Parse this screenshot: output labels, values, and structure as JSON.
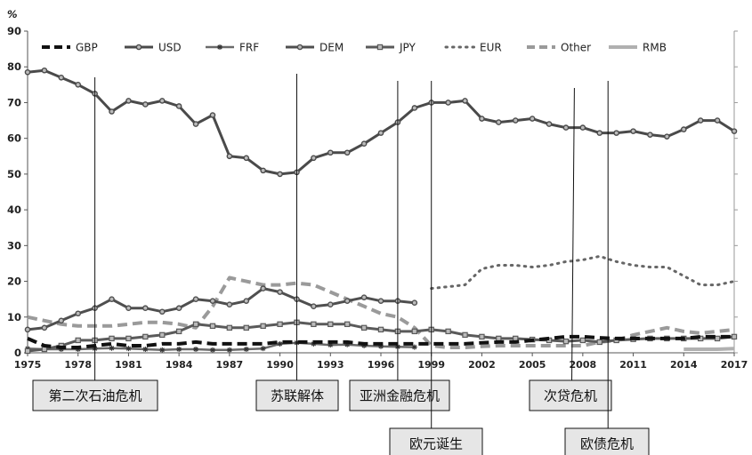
{
  "chart_data": {
    "type": "line",
    "ylabel": "%",
    "ylim": [
      0,
      90
    ],
    "xlim": [
      1975,
      2017
    ],
    "grid": false,
    "legend_position": "top",
    "x_ticks": [
      1975,
      1978,
      1981,
      1984,
      1987,
      1990,
      1993,
      1996,
      1999,
      2002,
      2005,
      2008,
      2011,
      2014,
      2017
    ],
    "y_ticks": [
      0,
      10,
      20,
      30,
      40,
      50,
      60,
      70,
      80,
      90
    ],
    "series": [
      {
        "name": "GBP",
        "style": "dashed",
        "color": "#111111",
        "width": 4,
        "marker": "none",
        "points": [
          [
            1975,
            4
          ],
          [
            1976,
            2
          ],
          [
            1977,
            1.5
          ],
          [
            1978,
            1.5
          ],
          [
            1979,
            2
          ],
          [
            1980,
            2.5
          ],
          [
            1981,
            2
          ],
          [
            1982,
            2
          ],
          [
            1983,
            2.5
          ],
          [
            1984,
            2.5
          ],
          [
            1985,
            3
          ],
          [
            1986,
            2.5
          ],
          [
            1987,
            2.5
          ],
          [
            1988,
            2.5
          ],
          [
            1989,
            2.5
          ],
          [
            1990,
            3
          ],
          [
            1991,
            3
          ],
          [
            1992,
            3
          ],
          [
            1993,
            3
          ],
          [
            1994,
            3
          ],
          [
            1995,
            2.5
          ],
          [
            1996,
            2.5
          ],
          [
            1997,
            2.5
          ],
          [
            1998,
            2.5
          ],
          [
            1999,
            2.5
          ],
          [
            2000,
            2.5
          ],
          [
            2001,
            2.5
          ],
          [
            2002,
            2.8
          ],
          [
            2003,
            3
          ],
          [
            2004,
            3
          ],
          [
            2005,
            3.5
          ],
          [
            2006,
            4
          ],
          [
            2007,
            4.5
          ],
          [
            2008,
            4.5
          ],
          [
            2009,
            4.2
          ],
          [
            2010,
            4
          ],
          [
            2011,
            4
          ],
          [
            2012,
            4
          ],
          [
            2013,
            4
          ],
          [
            2014,
            4
          ],
          [
            2015,
            4.5
          ],
          [
            2016,
            4.5
          ],
          [
            2017,
            4.5
          ]
        ]
      },
      {
        "name": "USD",
        "style": "solid",
        "color": "#4a4a4a",
        "width": 3,
        "marker": "circle",
        "points": [
          [
            1975,
            78.5
          ],
          [
            1976,
            79
          ],
          [
            1977,
            77
          ],
          [
            1978,
            75
          ],
          [
            1979,
            72.5
          ],
          [
            1980,
            67.5
          ],
          [
            1981,
            70.5
          ],
          [
            1982,
            69.5
          ],
          [
            1983,
            70.5
          ],
          [
            1984,
            69
          ],
          [
            1985,
            64
          ],
          [
            1986,
            66.5
          ],
          [
            1987,
            55
          ],
          [
            1988,
            54.5
          ],
          [
            1989,
            51
          ],
          [
            1990,
            50
          ],
          [
            1991,
            50.5
          ],
          [
            1992,
            54.5
          ],
          [
            1993,
            56
          ],
          [
            1994,
            56
          ],
          [
            1995,
            58.5
          ],
          [
            1996,
            61.5
          ],
          [
            1997,
            64.5
          ],
          [
            1998,
            68.5
          ],
          [
            1999,
            70
          ],
          [
            2000,
            70
          ],
          [
            2001,
            70.5
          ],
          [
            2002,
            65.5
          ],
          [
            2003,
            64.5
          ],
          [
            2004,
            65
          ],
          [
            2005,
            65.5
          ],
          [
            2006,
            64
          ],
          [
            2007,
            63
          ],
          [
            2008,
            63
          ],
          [
            2009,
            61.5
          ],
          [
            2010,
            61.5
          ],
          [
            2011,
            62
          ],
          [
            2012,
            61
          ],
          [
            2013,
            60.5
          ],
          [
            2014,
            62.5
          ],
          [
            2015,
            65
          ],
          [
            2016,
            65
          ],
          [
            2017,
            62
          ]
        ]
      },
      {
        "name": "FRF",
        "style": "solid",
        "color": "#6a6a6a",
        "width": 2.5,
        "marker": "star",
        "points": [
          [
            1975,
            1.2
          ],
          [
            1976,
            1
          ],
          [
            1977,
            1
          ],
          [
            1978,
            1
          ],
          [
            1979,
            1.2
          ],
          [
            1980,
            1.3
          ],
          [
            1981,
            1.2
          ],
          [
            1982,
            1
          ],
          [
            1983,
            0.8
          ],
          [
            1984,
            1
          ],
          [
            1985,
            1
          ],
          [
            1986,
            0.8
          ],
          [
            1987,
            0.8
          ],
          [
            1988,
            1
          ],
          [
            1989,
            1.2
          ],
          [
            1990,
            2.5
          ],
          [
            1991,
            2.8
          ],
          [
            1992,
            2.5
          ],
          [
            1993,
            2.2
          ],
          [
            1994,
            2.3
          ],
          [
            1995,
            2
          ],
          [
            1996,
            1.8
          ],
          [
            1997,
            1.7
          ],
          [
            1998,
            1.6
          ]
        ]
      },
      {
        "name": "DEM",
        "style": "solid",
        "color": "#4f4f4f",
        "width": 3,
        "marker": "circle",
        "points": [
          [
            1975,
            6.5
          ],
          [
            1976,
            7
          ],
          [
            1977,
            9
          ],
          [
            1978,
            11
          ],
          [
            1979,
            12.5
          ],
          [
            1980,
            15
          ],
          [
            1981,
            12.5
          ],
          [
            1982,
            12.5
          ],
          [
            1983,
            11.5
          ],
          [
            1984,
            12.5
          ],
          [
            1985,
            15
          ],
          [
            1986,
            14.5
          ],
          [
            1987,
            13.5
          ],
          [
            1988,
            14.5
          ],
          [
            1989,
            18
          ],
          [
            1990,
            17
          ],
          [
            1991,
            15
          ],
          [
            1992,
            13
          ],
          [
            1993,
            13.5
          ],
          [
            1994,
            14.5
          ],
          [
            1995,
            15.5
          ],
          [
            1996,
            14.5
          ],
          [
            1997,
            14.5
          ],
          [
            1998,
            14
          ]
        ]
      },
      {
        "name": "JPY",
        "style": "solid",
        "color": "#5a5a5a",
        "width": 3,
        "marker": "square",
        "points": [
          [
            1975,
            0.5
          ],
          [
            1976,
            1
          ],
          [
            1977,
            2
          ],
          [
            1978,
            3.5
          ],
          [
            1979,
            3.5
          ],
          [
            1980,
            4
          ],
          [
            1981,
            4
          ],
          [
            1982,
            4.5
          ],
          [
            1983,
            5
          ],
          [
            1984,
            6
          ],
          [
            1985,
            8
          ],
          [
            1986,
            7.5
          ],
          [
            1987,
            7
          ],
          [
            1988,
            7
          ],
          [
            1989,
            7.5
          ],
          [
            1990,
            8
          ],
          [
            1991,
            8.5
          ],
          [
            1992,
            8
          ],
          [
            1993,
            8
          ],
          [
            1994,
            8
          ],
          [
            1995,
            7
          ],
          [
            1996,
            6.5
          ],
          [
            1997,
            6
          ],
          [
            1998,
            6
          ],
          [
            1999,
            6.5
          ],
          [
            2000,
            6
          ],
          [
            2001,
            5
          ],
          [
            2002,
            4.5
          ],
          [
            2003,
            4
          ],
          [
            2004,
            4
          ],
          [
            2005,
            3.7
          ],
          [
            2006,
            3.5
          ],
          [
            2007,
            3.2
          ],
          [
            2008,
            3.5
          ],
          [
            2009,
            3
          ],
          [
            2010,
            3.5
          ],
          [
            2011,
            3.8
          ],
          [
            2012,
            4
          ],
          [
            2013,
            4
          ],
          [
            2014,
            4
          ],
          [
            2015,
            4
          ],
          [
            2016,
            4
          ],
          [
            2017,
            4.5
          ]
        ]
      },
      {
        "name": "EUR",
        "style": "dotted",
        "color": "#666666",
        "width": 3,
        "marker": "none",
        "points": [
          [
            1999,
            18
          ],
          [
            2000,
            18.5
          ],
          [
            2001,
            19
          ],
          [
            2002,
            23.5
          ],
          [
            2003,
            24.5
          ],
          [
            2004,
            24.5
          ],
          [
            2005,
            24
          ],
          [
            2006,
            24.5
          ],
          [
            2007,
            25.5
          ],
          [
            2008,
            26
          ],
          [
            2009,
            27
          ],
          [
            2010,
            25.5
          ],
          [
            2011,
            24.5
          ],
          [
            2012,
            24
          ],
          [
            2013,
            24
          ],
          [
            2014,
            21.5
          ],
          [
            2015,
            19
          ],
          [
            2016,
            19
          ],
          [
            2017,
            20
          ]
        ]
      },
      {
        "name": "Other",
        "style": "dashed",
        "color": "#9a9a9a",
        "width": 4,
        "marker": "none",
        "points": [
          [
            1975,
            10
          ],
          [
            1976,
            9
          ],
          [
            1977,
            8
          ],
          [
            1978,
            7.5
          ],
          [
            1979,
            7.5
          ],
          [
            1980,
            7.5
          ],
          [
            1981,
            8
          ],
          [
            1982,
            8.5
          ],
          [
            1983,
            8.5
          ],
          [
            1984,
            8
          ],
          [
            1985,
            7
          ],
          [
            1986,
            13
          ],
          [
            1987,
            21
          ],
          [
            1988,
            20
          ],
          [
            1989,
            19
          ],
          [
            1990,
            19
          ],
          [
            1991,
            19.5
          ],
          [
            1992,
            19
          ],
          [
            1993,
            17
          ],
          [
            1994,
            15
          ],
          [
            1995,
            13
          ],
          [
            1996,
            11
          ],
          [
            1997,
            10
          ],
          [
            1998,
            7
          ],
          [
            1999,
            2
          ],
          [
            2000,
            1.5
          ],
          [
            2001,
            1.5
          ],
          [
            2002,
            1.8
          ],
          [
            2003,
            2
          ],
          [
            2004,
            2
          ],
          [
            2005,
            2
          ],
          [
            2006,
            2
          ],
          [
            2007,
            2
          ],
          [
            2008,
            2
          ],
          [
            2009,
            3
          ],
          [
            2010,
            3.5
          ],
          [
            2011,
            5
          ],
          [
            2012,
            6
          ],
          [
            2013,
            7
          ],
          [
            2014,
            6
          ],
          [
            2015,
            5.5
          ],
          [
            2016,
            6
          ],
          [
            2017,
            6.5
          ]
        ]
      },
      {
        "name": "RMB",
        "style": "solid",
        "color": "#b0b0b0",
        "width": 4,
        "marker": "none",
        "points": [
          [
            2014,
            1
          ],
          [
            2015,
            1
          ],
          [
            2016,
            1
          ],
          [
            2017,
            1.2
          ]
        ]
      }
    ],
    "annotations": [
      {
        "label": "第二次石油危机",
        "x": 1979
      },
      {
        "label": "苏联解体",
        "x": 1991
      },
      {
        "label": "亚洲金融危机",
        "x": 1997
      },
      {
        "label": "欧元诞生",
        "x": 1999
      },
      {
        "label": "次贷危机",
        "x": 2007.5
      },
      {
        "label": "欧债危机",
        "x": 2009.5
      }
    ]
  }
}
